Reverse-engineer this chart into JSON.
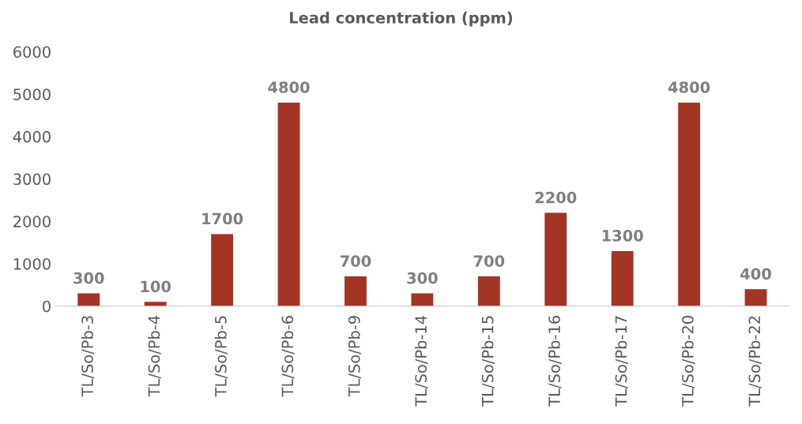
{
  "chart_data": {
    "type": "bar",
    "title": "Lead concentration (ppm)",
    "categories": [
      "TL/So/Pb-3",
      "TL/So/Pb-4",
      "TL/So/Pb-5",
      "TL/So/Pb-6",
      "TL/So/Pb-9",
      "TL/So/Pb-14",
      "TL/So/Pb-15",
      "TL/So/Pb-16",
      "TL/So/Pb-17",
      "TL/So/Pb-20",
      "TL/So/Pb-22"
    ],
    "values": [
      300,
      100,
      1700,
      4800,
      700,
      300,
      700,
      2200,
      1300,
      4800,
      400
    ],
    "color": "#a33525",
    "ylim": [
      0,
      6000
    ],
    "yticks": [
      0,
      1000,
      2000,
      3000,
      4000,
      5000,
      6000
    ],
    "grid": false,
    "data_labels": true
  }
}
